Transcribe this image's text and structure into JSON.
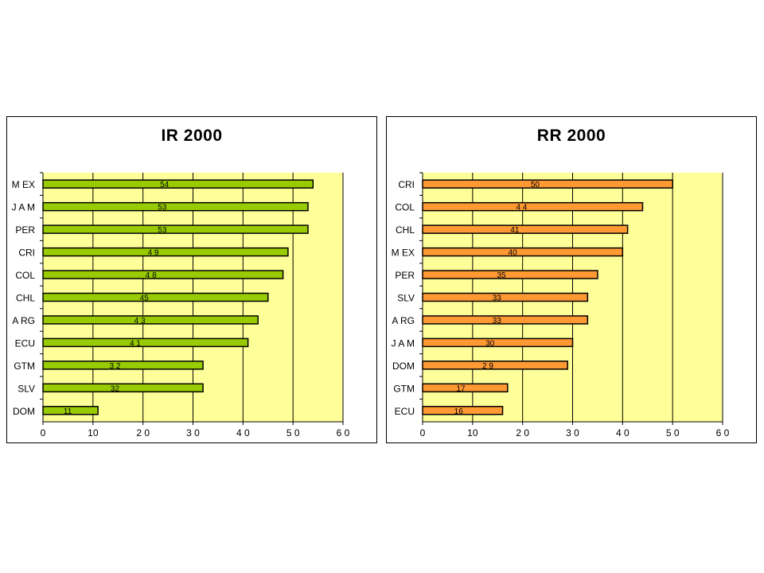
{
  "chart_data": [
    {
      "type": "bar",
      "orientation": "horizontal",
      "title": "IR 2000",
      "categories": [
        "MEX",
        "JAM",
        "PER",
        "CRI",
        "COL",
        "CHL",
        "ARG",
        "ECU",
        "GTM",
        "SLV",
        "DOM"
      ],
      "category_labels": [
        "M EX",
        "J A M",
        "PER",
        "CRI",
        "COL",
        "CHL",
        "A RG",
        "ECU",
        "GTM",
        "SLV",
        "DOM"
      ],
      "values": [
        54,
        53,
        53,
        49,
        48,
        45,
        43,
        41,
        32,
        32,
        11
      ],
      "data_labels": [
        "54",
        "53",
        "53",
        "4 9",
        "4 8",
        "45",
        "4 3",
        "4 1",
        "3 2",
        "32",
        "11"
      ],
      "xlim": [
        0,
        60
      ],
      "x_ticks": [
        0,
        10,
        20,
        30,
        40,
        50,
        60
      ],
      "x_tick_labels": [
        "0",
        "10",
        "2 0",
        "3 0",
        "4 0",
        "5 0",
        "6 0"
      ],
      "grid": true,
      "legend": "none",
      "bar_color": "#99cc00",
      "plot_background": "#ffff99"
    },
    {
      "type": "bar",
      "orientation": "horizontal",
      "title": "RR 2000",
      "categories": [
        "CRI",
        "COL",
        "CHL",
        "MEX",
        "PER",
        "SLV",
        "ARG",
        "JAM",
        "DOM",
        "GTM",
        "ECU"
      ],
      "category_labels": [
        "CRI",
        "COL",
        "CHL",
        "M EX",
        "PER",
        "SLV",
        "A RG",
        "J A M",
        "DOM",
        "GTM",
        "ECU"
      ],
      "values": [
        50,
        44,
        41,
        40,
        35,
        33,
        33,
        30,
        29,
        17,
        16
      ],
      "data_labels": [
        "50",
        "4 4",
        "41",
        "40",
        "35",
        "33",
        "33",
        "30",
        "2 9",
        "17",
        "16"
      ],
      "xlim": [
        0,
        60
      ],
      "x_ticks": [
        0,
        10,
        20,
        30,
        40,
        50,
        60
      ],
      "x_tick_labels": [
        "0",
        "10",
        "2 0",
        "3 0",
        "4 0",
        "5 0",
        "6 0"
      ],
      "grid": true,
      "legend": "none",
      "bar_color": "#ff9933",
      "plot_background": "#ffff99"
    }
  ]
}
